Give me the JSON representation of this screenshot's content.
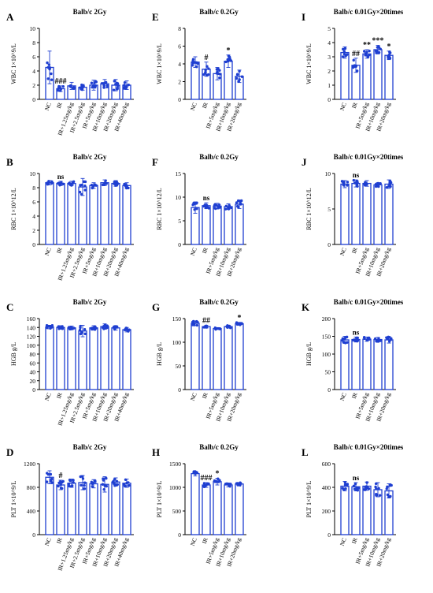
{
  "colors": {
    "bar_fill": "#ffffff",
    "bar_stroke": "#1f3fd1",
    "point": "#1f3fd1",
    "axis": "#000000"
  },
  "chart_data": [
    {
      "letter": "A",
      "type": "bar",
      "title": "Balb/c 2Gy",
      "ylabel": "WBC 1×10^9/L",
      "ylim": [
        0,
        10
      ],
      "yticks": [
        0,
        2,
        4,
        6,
        8,
        10
      ],
      "categories": [
        "NC",
        "IR",
        "IR+1.25mg/kg",
        "IR+2.5mg/kg",
        "IR+5mg/kg",
        "IR+10mg/kg",
        "IR+20mg/kg",
        "IR+40mg/kg"
      ],
      "values": [
        4.5,
        1.5,
        1.9,
        1.7,
        2.0,
        2.2,
        2.0,
        2.0
      ],
      "errors": [
        2.3,
        0.4,
        0.5,
        0.4,
        0.7,
        0.6,
        0.8,
        0.6
      ],
      "annotations": [
        "",
        "###",
        "",
        "",
        "",
        "",
        "",
        ""
      ]
    },
    {
      "letter": "E",
      "type": "bar",
      "title": "Balb/c 0.2Gy",
      "ylabel": "WBC 1×10^9/L",
      "ylim": [
        0,
        8
      ],
      "yticks": [
        0,
        2,
        4,
        6,
        8
      ],
      "categories": [
        "NC",
        "IR",
        "IR+5mg/kg",
        "IR+10mg/kg",
        "IR+20mg/kg"
      ],
      "values": [
        4.2,
        3.4,
        2.9,
        4.3,
        2.6
      ],
      "errors": [
        0.6,
        0.8,
        0.7,
        0.7,
        0.7
      ],
      "annotations": [
        "",
        "#",
        "",
        "*",
        ""
      ]
    },
    {
      "letter": "I",
      "type": "bar",
      "title": "Balb/c 0.01Gy×20times",
      "ylabel": "WBC 1×10^9/L",
      "ylim": [
        0,
        5
      ],
      "yticks": [
        0,
        1,
        2,
        3,
        4,
        5
      ],
      "categories": [
        "NC",
        "IR",
        "IR+5mg/kg",
        "IR+10mg/kg",
        "IR+20mg/kg"
      ],
      "values": [
        3.3,
        2.4,
        3.2,
        3.5,
        3.1
      ],
      "errors": [
        0.4,
        0.5,
        0.3,
        0.3,
        0.3
      ],
      "annotations": [
        "",
        "##",
        "**",
        "***",
        "*"
      ]
    },
    {
      "letter": "B",
      "type": "bar",
      "title": "Balb/c 2Gy",
      "ylabel": "RBC 1×10^12/L",
      "ylim": [
        0,
        10
      ],
      "yticks": [
        0,
        2,
        4,
        6,
        8,
        10
      ],
      "categories": [
        "NC",
        "IR",
        "IR+1.25mg/kg",
        "IR+2.5mg/kg",
        "IR+5mg/kg",
        "IR+10mg/kg",
        "IR+20mg/kg",
        "IR+40mg/kg"
      ],
      "values": [
        8.7,
        8.6,
        8.6,
        8.1,
        8.3,
        8.7,
        8.6,
        8.3
      ],
      "errors": [
        0.3,
        0.3,
        0.3,
        1.2,
        0.4,
        0.4,
        0.4,
        0.4
      ],
      "annotations": [
        "",
        "ns",
        "",
        "",
        "",
        "",
        "",
        ""
      ]
    },
    {
      "letter": "F",
      "type": "bar",
      "title": "Balb/c 0.2Gy",
      "ylabel": "RBC 1×10^12/L",
      "ylim": [
        0,
        15
      ],
      "yticks": [
        0,
        5,
        10,
        15
      ],
      "categories": [
        "NC",
        "IR",
        "IR+5mg/kg",
        "IR+10mg/kg",
        "IR+20mg/kg"
      ],
      "values": [
        7.8,
        8.2,
        8.1,
        8.0,
        8.5
      ],
      "errors": [
        1.2,
        0.6,
        0.6,
        0.6,
        0.9
      ],
      "annotations": [
        "",
        "ns",
        "",
        "",
        ""
      ]
    },
    {
      "letter": "J",
      "type": "bar",
      "title": "Balb/c 0.01Gy×20times",
      "ylabel": "RBC 1×10^12/L",
      "ylim": [
        0,
        10
      ],
      "yticks": [
        0,
        5,
        10
      ],
      "categories": [
        "NC",
        "IR",
        "IR+5mg/kg",
        "IR+10mg/kg",
        "IR+20mg/kg"
      ],
      "values": [
        8.5,
        8.6,
        8.6,
        8.4,
        8.5
      ],
      "errors": [
        0.5,
        0.5,
        0.4,
        0.3,
        0.6
      ],
      "annotations": [
        "",
        "ns",
        "",
        "",
        ""
      ]
    },
    {
      "letter": "C",
      "type": "bar",
      "title": "Balb/c 2Gy",
      "ylabel": "HGB g/L",
      "ylim": [
        0,
        160
      ],
      "yticks": [
        0,
        20,
        40,
        60,
        80,
        100,
        120,
        140,
        160
      ],
      "categories": [
        "NC",
        "IR",
        "IR+1.25mg/kg",
        "IR+2.5mg/kg",
        "IR+5mg/kg",
        "IR+10mg/kg",
        "IR+20mg/kg",
        "IR+40mg/kg"
      ],
      "values": [
        141,
        140,
        139,
        132,
        139,
        142,
        139,
        135
      ],
      "errors": [
        4,
        4,
        4,
        13,
        5,
        6,
        5,
        5
      ],
      "annotations": [
        "",
        "",
        "",
        "",
        "",
        "",
        "",
        ""
      ]
    },
    {
      "letter": "G",
      "type": "bar",
      "title": "Balb/c 0.2Gy",
      "ylabel": "HGB g/L",
      "ylim": [
        0,
        150
      ],
      "yticks": [
        0,
        50,
        100,
        150
      ],
      "categories": [
        "NC",
        "IR",
        "IR+5mg/kg",
        "IR+10mg/kg",
        "IR+20mg/kg"
      ],
      "values": [
        140,
        133,
        129,
        133,
        139
      ],
      "errors": [
        5,
        3,
        2,
        3,
        3
      ],
      "annotations": [
        "",
        "##",
        "",
        "",
        "*"
      ]
    },
    {
      "letter": "K",
      "type": "bar",
      "title": "Balb/c 0.01Gy×20times",
      "ylabel": "HGB g/L",
      "ylim": [
        0,
        200
      ],
      "yticks": [
        0,
        50,
        100,
        150,
        200
      ],
      "categories": [
        "NC",
        "IR",
        "IR+5mg/kg",
        "IR+10mg/kg",
        "IR+20mg/kg"
      ],
      "values": [
        140,
        141,
        142,
        141,
        140
      ],
      "errors": [
        10,
        7,
        6,
        6,
        9
      ],
      "annotations": [
        "",
        "ns",
        "",
        "",
        ""
      ]
    },
    {
      "letter": "D",
      "type": "bar",
      "title": "Balb/c 2Gy",
      "ylabel": "PLT 1×10^9/L",
      "ylim": [
        0,
        1200
      ],
      "yticks": [
        0,
        400,
        800,
        1200
      ],
      "categories": [
        "NC",
        "IR",
        "IR+1.25mg/kg",
        "IR+2.5mg/kg",
        "IR+5mg/kg",
        "IR+10mg/kg",
        "IR+20mg/kg",
        "IR+40mg/kg"
      ],
      "values": [
        970,
        840,
        870,
        880,
        860,
        850,
        890,
        870
      ],
      "errors": [
        110,
        80,
        70,
        120,
        70,
        130,
        70,
        70
      ],
      "annotations": [
        "",
        "#",
        "",
        "",
        "",
        "",
        "",
        ""
      ]
    },
    {
      "letter": "H",
      "type": "bar",
      "title": "Balb/c 0.2Gy",
      "ylabel": "PLT 1×10^9/L",
      "ylim": [
        0,
        1500
      ],
      "yticks": [
        0,
        500,
        1000,
        1500
      ],
      "categories": [
        "NC",
        "IR",
        "IR+5mg/kg",
        "IR+10mg/kg",
        "IR+20mg/kg"
      ],
      "values": [
        1290,
        1050,
        1120,
        1050,
        1070
      ],
      "errors": [
        50,
        50,
        70,
        40,
        30
      ],
      "annotations": [
        "",
        "###",
        "*",
        "",
        ""
      ]
    },
    {
      "letter": "L",
      "type": "bar",
      "title": "Balb/c 0.01Gy×20times",
      "ylabel": "PLT 1×10^9/L",
      "ylim": [
        0,
        600
      ],
      "yticks": [
        0,
        200,
        400,
        600
      ],
      "categories": [
        "NC",
        "IR",
        "IR+5mg/kg",
        "IR+10mg/kg",
        "IR+20mg/kg"
      ],
      "values": [
        410,
        405,
        410,
        380,
        370
      ],
      "errors": [
        40,
        35,
        35,
        60,
        60
      ],
      "annotations": [
        "",
        "ns",
        "",
        "",
        ""
      ]
    }
  ]
}
